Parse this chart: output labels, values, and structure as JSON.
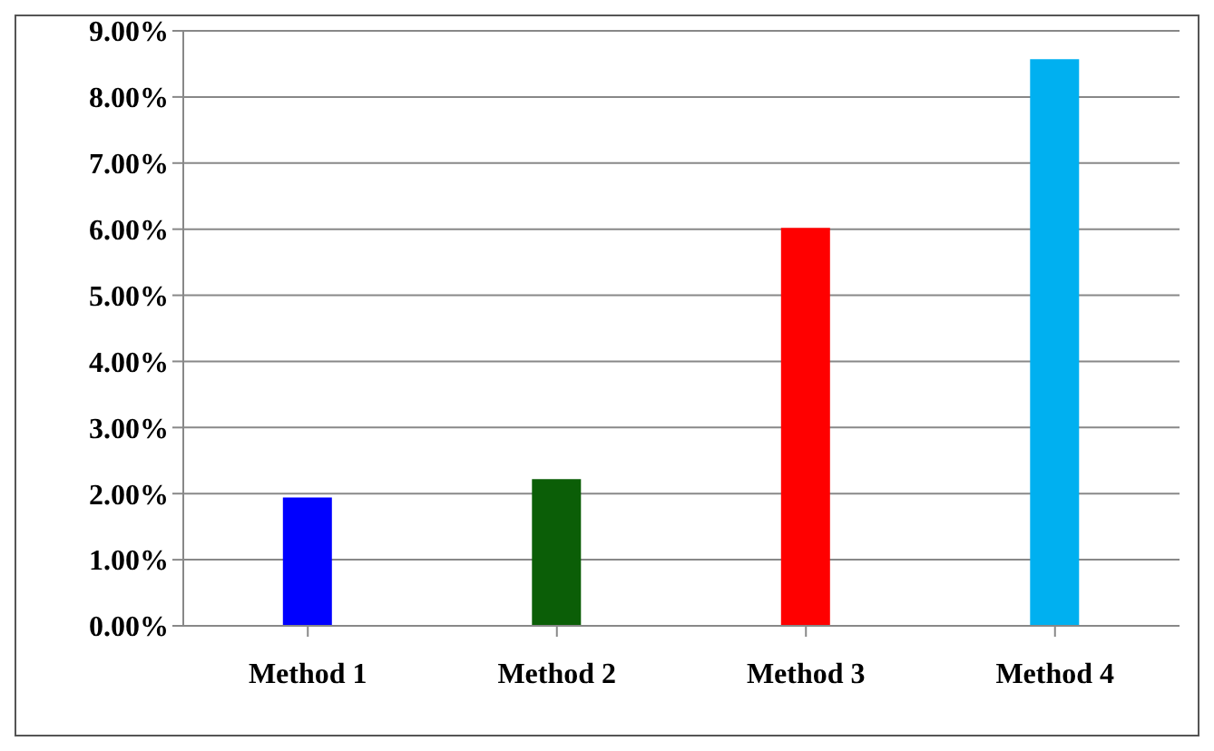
{
  "chart_data": {
    "type": "bar",
    "categories": [
      "Method 1",
      "Method 2",
      "Method 3",
      "Method 4"
    ],
    "values": [
      1.94,
      2.22,
      6.02,
      8.57
    ],
    "colors": [
      "#0000ff",
      "#0b5e07",
      "#ff0000",
      "#00b0f0"
    ],
    "ylim": [
      0,
      9
    ],
    "yticks": [
      {
        "value": 0,
        "label": "0.00%"
      },
      {
        "value": 1,
        "label": "1.00%"
      },
      {
        "value": 2,
        "label": "2.00%"
      },
      {
        "value": 3,
        "label": "3.00%"
      },
      {
        "value": 4,
        "label": "4.00%"
      },
      {
        "value": 5,
        "label": "5.00%"
      },
      {
        "value": 6,
        "label": "6.00%"
      },
      {
        "value": 7,
        "label": "7.00%"
      },
      {
        "value": 8,
        "label": "8.00%"
      },
      {
        "value": 9,
        "label": "9.00%"
      }
    ],
    "grid": "y",
    "legend": false
  }
}
